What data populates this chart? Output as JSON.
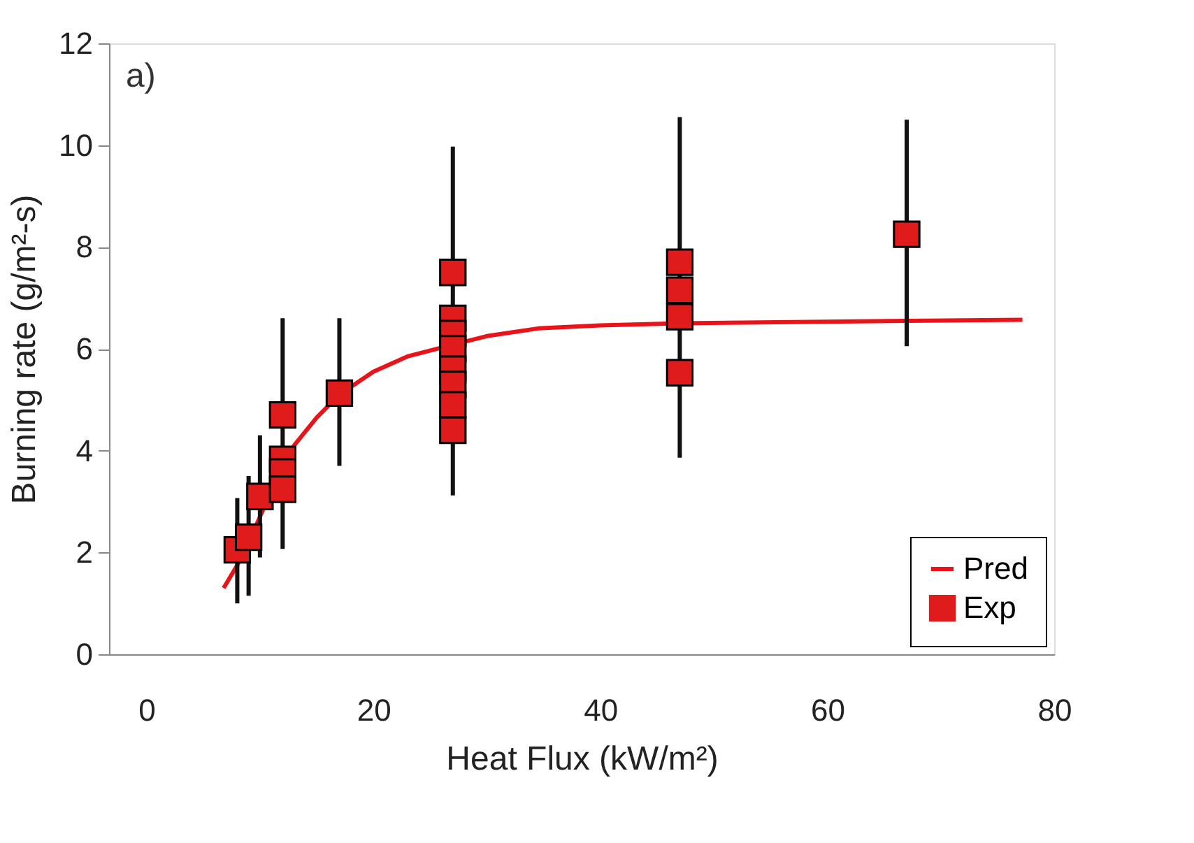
{
  "chart_data": {
    "type": "scatter",
    "xlabel": "Heat Flux (kW/m²)",
    "ylabel": "Burning rate (g/m²-s)",
    "annotations": [
      "a)"
    ],
    "xlim": [
      -3.3,
      80
    ],
    "xticks": [
      0,
      20,
      40,
      60,
      80
    ],
    "ylim": [
      0,
      12
    ],
    "yticks": [
      0,
      2,
      4,
      6,
      8,
      10,
      12
    ],
    "grid": false,
    "legend": "bottom right",
    "tick_labels": true,
    "series": [
      {
        "name": "Pred",
        "type": "line",
        "color": "#e8141a",
        "line_style": "solid",
        "marker": "none",
        "x": [
          6.8,
          8,
          9,
          10,
          11,
          12,
          13,
          15,
          17,
          20,
          23,
          27,
          30,
          34.5,
          40,
          47,
          67,
          77.2
        ],
        "values": [
          1.3,
          1.75,
          2.2,
          2.7,
          3.2,
          3.7,
          4.1,
          4.65,
          5.1,
          5.55,
          5.85,
          6.08,
          6.25,
          6.4,
          6.46,
          6.5,
          6.55,
          6.57
        ]
      },
      {
        "name": "Exp",
        "color": "#e01b1b",
        "marker": "square",
        "x": [
          8,
          9,
          10,
          12,
          12,
          12,
          12,
          17,
          27,
          27,
          27,
          27,
          27,
          27,
          27,
          27,
          47,
          47,
          47,
          47,
          67
        ],
        "values": [
          2.05,
          2.3,
          3.1,
          4.7,
          3.83,
          3.58,
          3.24,
          5.13,
          7.5,
          6.6,
          6.3,
          6.0,
          5.6,
          5.3,
          4.9,
          4.4,
          7.7,
          7.15,
          6.63,
          5.53,
          8.25
        ],
        "errors": [
          [
            1.0,
            3.07
          ],
          [
            1.15,
            3.5
          ],
          [
            1.9,
            4.3
          ],
          null,
          null,
          [
            2.07,
            6.6
          ],
          null,
          [
            3.7,
            6.6
          ],
          null,
          null,
          null,
          [
            3.12,
            9.97
          ],
          null,
          null,
          null,
          null,
          null,
          null,
          [
            3.86,
            10.55
          ],
          null,
          [
            6.05,
            10.5
          ]
        ]
      }
    ]
  }
}
